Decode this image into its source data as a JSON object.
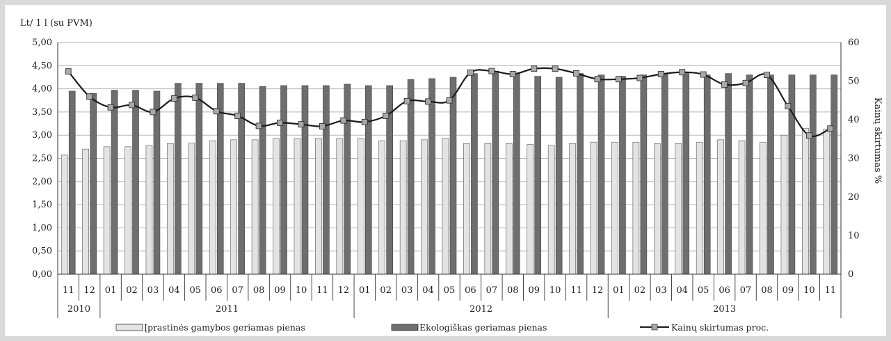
{
  "chart_data": {
    "type": "bar",
    "y_left_label": "Lt/ 1 l (su PVM)",
    "y_right_label": "Kainų skirtumas %",
    "y_left_ticks": [
      "0,00",
      "0,50",
      "1,00",
      "1,50",
      "2,00",
      "2,50",
      "3,00",
      "3,50",
      "4,00",
      "4,50",
      "5,00"
    ],
    "y_right_ticks": [
      "0",
      "10",
      "20",
      "30",
      "40",
      "50",
      "60"
    ],
    "ylim_left": [
      0,
      5
    ],
    "ylim_right": [
      0,
      60
    ],
    "grid": true,
    "legend_position": "bottom",
    "months": [
      "11",
      "12",
      "01",
      "02",
      "03",
      "04",
      "05",
      "06",
      "07",
      "08",
      "09",
      "10",
      "11",
      "12",
      "01",
      "02",
      "03",
      "04",
      "05",
      "06",
      "07",
      "08",
      "09",
      "10",
      "11",
      "12",
      "01",
      "02",
      "03",
      "04",
      "05",
      "06",
      "07",
      "08",
      "09",
      "10",
      "11"
    ],
    "years": [
      {
        "label": "2010",
        "count": 2
      },
      {
        "label": "2011",
        "count": 12
      },
      {
        "label": "2012",
        "count": 12
      },
      {
        "label": "2013",
        "count": 11
      }
    ],
    "series": [
      {
        "name": "Įprastinės gamybos geriamas pienas",
        "kind": "bar",
        "axis": "left",
        "color": "#e3e3e3",
        "values": [
          2.57,
          2.7,
          2.75,
          2.75,
          2.78,
          2.82,
          2.83,
          2.88,
          2.9,
          2.9,
          2.93,
          2.93,
          2.93,
          2.93,
          2.93,
          2.88,
          2.88,
          2.9,
          2.93,
          2.82,
          2.82,
          2.82,
          2.8,
          2.78,
          2.82,
          2.85,
          2.85,
          2.85,
          2.82,
          2.82,
          2.85,
          2.9,
          2.88,
          2.85,
          3.0,
          3.15,
          3.13
        ]
      },
      {
        "name": "Ekologiškas geriamas pienas",
        "kind": "bar",
        "axis": "left",
        "color": "#6e6e6e",
        "values": [
          3.95,
          3.9,
          3.97,
          3.97,
          3.95,
          4.12,
          4.12,
          4.12,
          4.12,
          4.05,
          4.07,
          4.07,
          4.07,
          4.1,
          4.07,
          4.07,
          4.2,
          4.22,
          4.25,
          4.33,
          4.38,
          4.33,
          4.27,
          4.25,
          4.33,
          4.3,
          4.27,
          4.3,
          4.33,
          4.33,
          4.3,
          4.33,
          4.3,
          4.3,
          4.3,
          4.3,
          4.3
        ]
      },
      {
        "name": "Kainų skirtumas proc.",
        "kind": "line",
        "axis": "right",
        "color": "#1a1a1a",
        "values": [
          52.5,
          46.0,
          43.2,
          43.8,
          42.0,
          45.5,
          45.7,
          42.2,
          41.0,
          38.4,
          39.2,
          38.8,
          38.3,
          39.8,
          39.4,
          41.0,
          44.8,
          44.7,
          45.0,
          52.2,
          52.6,
          51.8,
          53.2,
          53.2,
          52.0,
          50.5,
          50.5,
          50.8,
          51.8,
          52.3,
          51.7,
          49.1,
          49.5,
          51.6,
          43.5,
          35.9,
          37.7
        ]
      }
    ]
  }
}
